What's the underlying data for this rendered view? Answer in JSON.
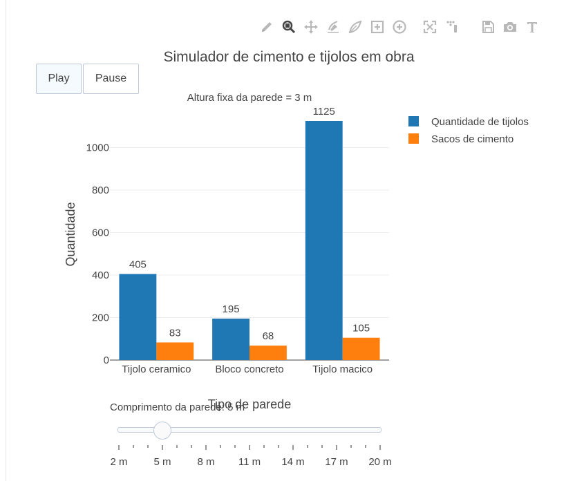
{
  "modebar": {
    "icons": [
      "pencil-icon",
      "zoom-icon",
      "pan-icon",
      "draw-open-path-icon",
      "draw-closed-path-icon",
      "draw-rect-icon",
      "draw-circle-icon",
      "autoscale-icon",
      "reset-axes-icon",
      "save-icon",
      "camera-icon",
      "text-icon"
    ],
    "active_icon": "zoom-icon"
  },
  "controls": {
    "play_label": "Play",
    "pause_label": "Pause"
  },
  "chart_data": {
    "type": "bar",
    "title": "Simulador de cimento e tijolos em obra",
    "subtitle": "Altura fixa da parede = 3 m",
    "xlabel": "Tipo de parede",
    "ylabel": "Quantidade",
    "categories": [
      "Tijolo ceramico",
      "Bloco concreto",
      "Tijolo macico"
    ],
    "series": [
      {
        "name": "Quantidade de tijolos",
        "values": [
          405,
          195,
          1125
        ],
        "color": "#1f77b4"
      },
      {
        "name": "Sacos de cimento",
        "values": [
          83,
          68,
          105
        ],
        "color": "#ff7f0e"
      }
    ],
    "ylim": [
      0,
      1125
    ],
    "yticks": [
      0,
      200,
      400,
      600,
      800,
      1000
    ],
    "grid": true,
    "legend_position": "top-right",
    "data_labels": true
  },
  "slider": {
    "label": "Comprimento da parede: 5 m",
    "min": 2,
    "max": 20,
    "step": 1,
    "value": 5,
    "tick_labels": [
      "2 m",
      "5 m",
      "8 m",
      "11 m",
      "14 m",
      "17 m",
      "20 m"
    ],
    "labeled_values": [
      2,
      5,
      8,
      11,
      14,
      17,
      20
    ]
  }
}
